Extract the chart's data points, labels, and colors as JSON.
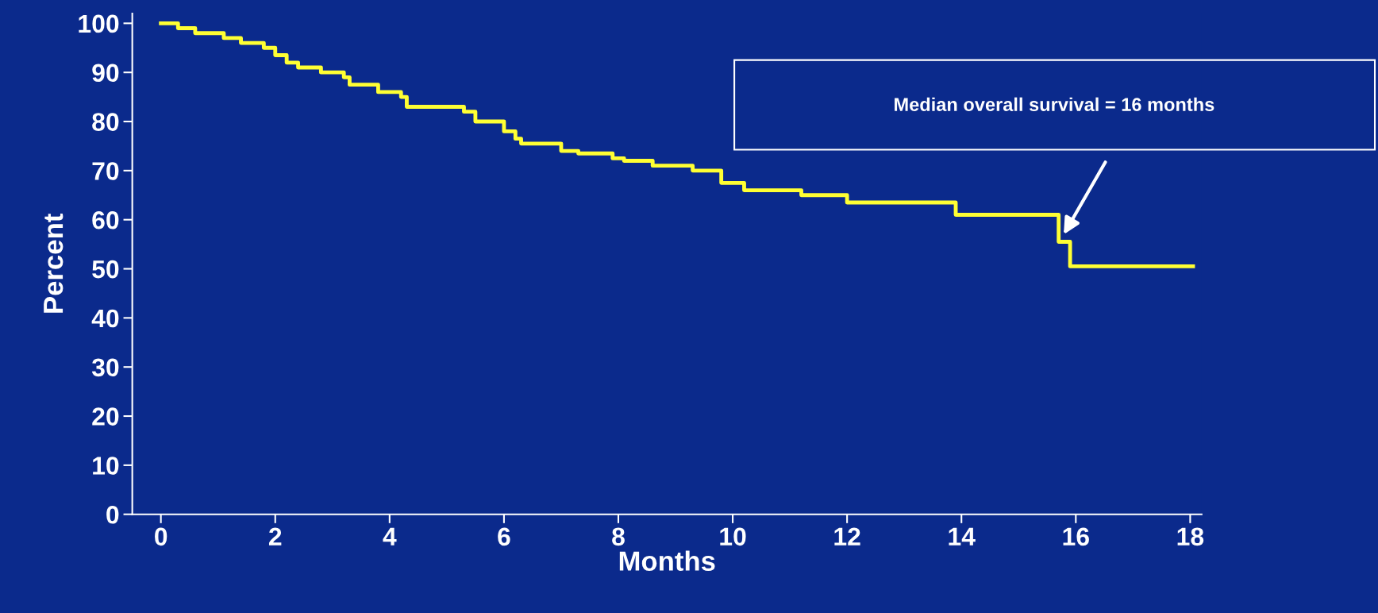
{
  "chart_data": {
    "type": "step",
    "xlabel": "Months",
    "ylabel": "Percent",
    "series": [
      {
        "color": "#ffff33",
        "x": [
          0,
          0.3,
          0.6,
          1.1,
          1.4,
          1.8,
          2.0,
          2.2,
          2.4,
          2.8,
          3.2,
          3.3,
          3.8,
          4.2,
          4.3,
          5.3,
          5.5,
          6.0,
          6.2,
          6.3,
          7.0,
          7.3,
          7.9,
          8.1,
          8.6,
          9.3,
          9.8,
          10.2,
          11.2,
          12.0,
          13.9,
          15.7,
          15.9,
          18.05
        ],
        "values": [
          100,
          99,
          98,
          97,
          96,
          95,
          93.5,
          92,
          91,
          90,
          89,
          87.5,
          86,
          85,
          83,
          82,
          80,
          78,
          76.5,
          75.5,
          74,
          73.5,
          72.5,
          72,
          71,
          70,
          67.5,
          66,
          65,
          63.5,
          61,
          55.5,
          50.5,
          50.5
        ]
      }
    ],
    "annotations": [
      "Median overall survival = 16 months"
    ],
    "xlim": [
      -0.5,
      18.2
    ],
    "ylim": [
      0,
      102
    ],
    "xticks": [
      0,
      2,
      4,
      6,
      8,
      10,
      12,
      14,
      16,
      18
    ],
    "yticks": [
      0,
      10,
      20,
      30,
      40,
      50,
      60,
      70,
      80,
      90,
      100
    ],
    "grid": false,
    "legend": false
  }
}
